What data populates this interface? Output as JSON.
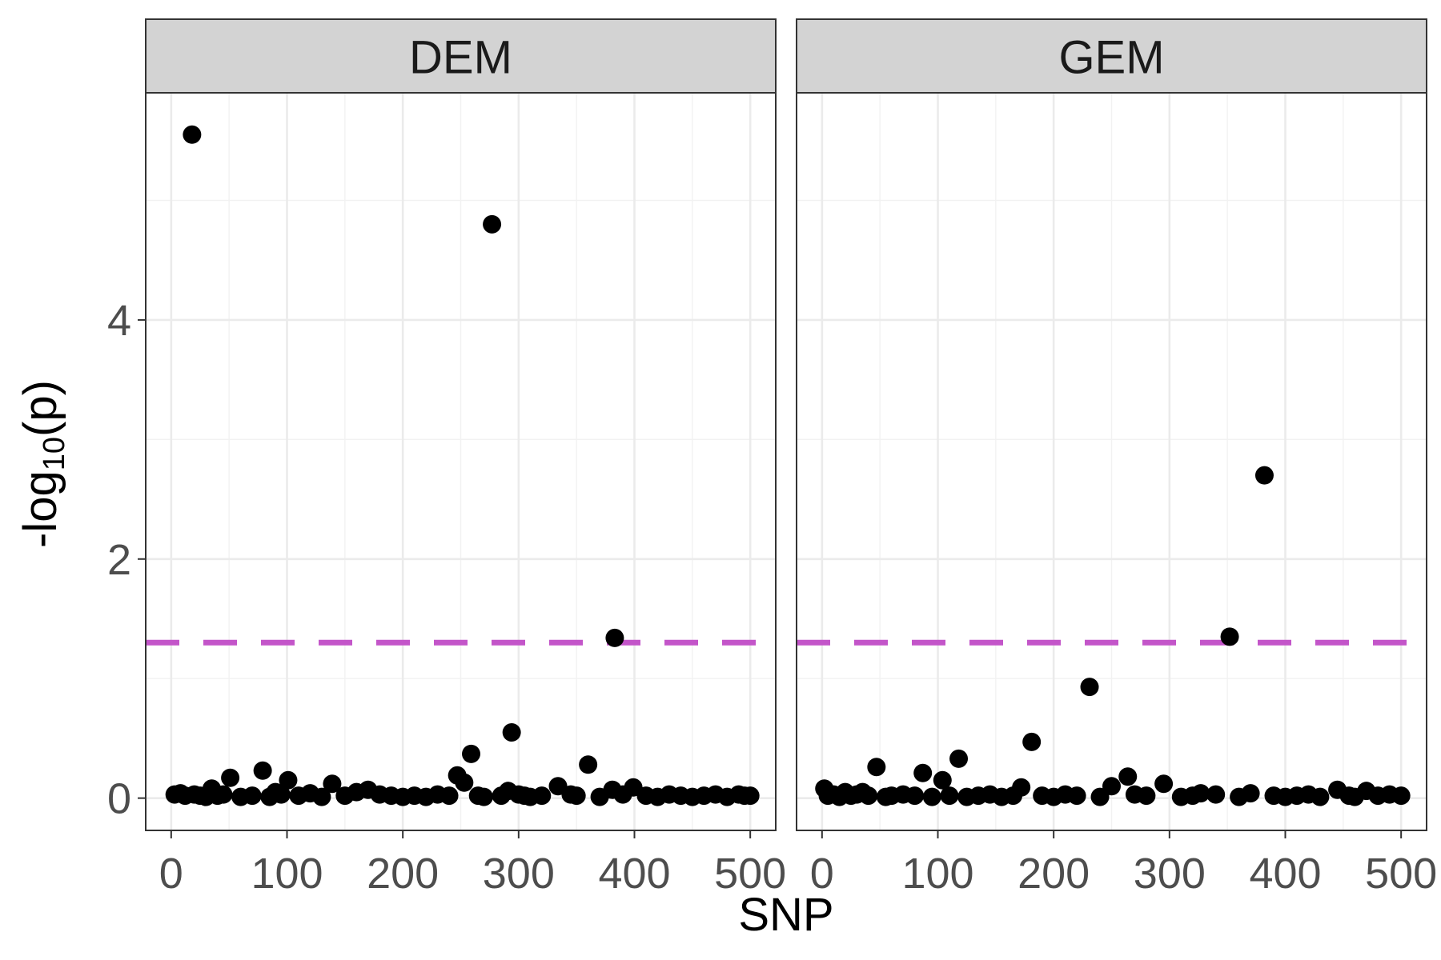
{
  "chart_data": {
    "type": "scatter",
    "xlabel": "SNP",
    "ylabel_parts": {
      "prefix": "-log",
      "subscript": "10",
      "suffix": "(p)"
    },
    "xlim": [
      -22,
      522
    ],
    "ylim": [
      -0.27,
      5.9
    ],
    "x_ticks": [
      0,
      100,
      200,
      300,
      400,
      500
    ],
    "y_ticks": [
      0,
      2,
      4
    ],
    "grid": true,
    "threshold": {
      "value": 1.301,
      "color": "#c355c9",
      "style": "dashed"
    },
    "point_color": "#000000",
    "facets": [
      {
        "label": "DEM",
        "points": [
          [
            18,
            5.55
          ],
          [
            277,
            4.8
          ],
          [
            383,
            1.34
          ],
          [
            294,
            0.55
          ],
          [
            259,
            0.37
          ],
          [
            360,
            0.28
          ],
          [
            79,
            0.23
          ],
          [
            247,
            0.19
          ],
          [
            51,
            0.17
          ],
          [
            101,
            0.15
          ],
          [
            253,
            0.13
          ],
          [
            139,
            0.12
          ],
          [
            334,
            0.1
          ],
          [
            399,
            0.09
          ],
          [
            35,
            0.08
          ],
          [
            170,
            0.07
          ],
          [
            381,
            0.07
          ],
          [
            291,
            0.06
          ],
          [
            160,
            0.05
          ],
          [
            90,
            0.05
          ],
          [
            3,
            0.03
          ],
          [
            8,
            0.04
          ],
          [
            12,
            0.02
          ],
          [
            20,
            0.03
          ],
          [
            25,
            0.02
          ],
          [
            30,
            0.01
          ],
          [
            40,
            0.02
          ],
          [
            45,
            0.03
          ],
          [
            60,
            0.01
          ],
          [
            70,
            0.02
          ],
          [
            85,
            0.01
          ],
          [
            95,
            0.03
          ],
          [
            110,
            0.02
          ],
          [
            120,
            0.04
          ],
          [
            130,
            0.01
          ],
          [
            150,
            0.02
          ],
          [
            180,
            0.03
          ],
          [
            190,
            0.02
          ],
          [
            200,
            0.01
          ],
          [
            210,
            0.02
          ],
          [
            220,
            0.01
          ],
          [
            230,
            0.03
          ],
          [
            240,
            0.02
          ],
          [
            265,
            0.02
          ],
          [
            270,
            0.01
          ],
          [
            285,
            0.02
          ],
          [
            300,
            0.03
          ],
          [
            305,
            0.02
          ],
          [
            310,
            0.01
          ],
          [
            320,
            0.02
          ],
          [
            345,
            0.03
          ],
          [
            350,
            0.02
          ],
          [
            370,
            0.01
          ],
          [
            390,
            0.03
          ],
          [
            410,
            0.02
          ],
          [
            420,
            0.01
          ],
          [
            430,
            0.03
          ],
          [
            440,
            0.02
          ],
          [
            450,
            0.01
          ],
          [
            460,
            0.02
          ],
          [
            470,
            0.03
          ],
          [
            480,
            0.01
          ],
          [
            490,
            0.03
          ],
          [
            495,
            0.02
          ],
          [
            500,
            0.02
          ]
        ]
      },
      {
        "label": "GEM",
        "points": [
          [
            382,
            2.7
          ],
          [
            352,
            1.35
          ],
          [
            231,
            0.93
          ],
          [
            181,
            0.47
          ],
          [
            118,
            0.33
          ],
          [
            47,
            0.26
          ],
          [
            87,
            0.21
          ],
          [
            264,
            0.18
          ],
          [
            104,
            0.15
          ],
          [
            295,
            0.12
          ],
          [
            250,
            0.1
          ],
          [
            172,
            0.09
          ],
          [
            2,
            0.08
          ],
          [
            445,
            0.07
          ],
          [
            470,
            0.06
          ],
          [
            20,
            0.05
          ],
          [
            35,
            0.05
          ],
          [
            370,
            0.04
          ],
          [
            327,
            0.04
          ],
          [
            5,
            0.02
          ],
          [
            10,
            0.03
          ],
          [
            15,
            0.01
          ],
          [
            25,
            0.02
          ],
          [
            30,
            0.03
          ],
          [
            40,
            0.02
          ],
          [
            55,
            0.01
          ],
          [
            60,
            0.02
          ],
          [
            70,
            0.03
          ],
          [
            80,
            0.02
          ],
          [
            95,
            0.01
          ],
          [
            110,
            0.02
          ],
          [
            125,
            0.01
          ],
          [
            135,
            0.02
          ],
          [
            145,
            0.03
          ],
          [
            155,
            0.01
          ],
          [
            165,
            0.02
          ],
          [
            190,
            0.02
          ],
          [
            200,
            0.01
          ],
          [
            210,
            0.03
          ],
          [
            220,
            0.02
          ],
          [
            240,
            0.01
          ],
          [
            270,
            0.03
          ],
          [
            280,
            0.02
          ],
          [
            310,
            0.01
          ],
          [
            320,
            0.02
          ],
          [
            340,
            0.03
          ],
          [
            360,
            0.01
          ],
          [
            390,
            0.02
          ],
          [
            400,
            0.01
          ],
          [
            410,
            0.02
          ],
          [
            420,
            0.03
          ],
          [
            430,
            0.01
          ],
          [
            455,
            0.02
          ],
          [
            460,
            0.01
          ],
          [
            480,
            0.02
          ],
          [
            490,
            0.03
          ],
          [
            500,
            0.02
          ]
        ]
      }
    ]
  }
}
